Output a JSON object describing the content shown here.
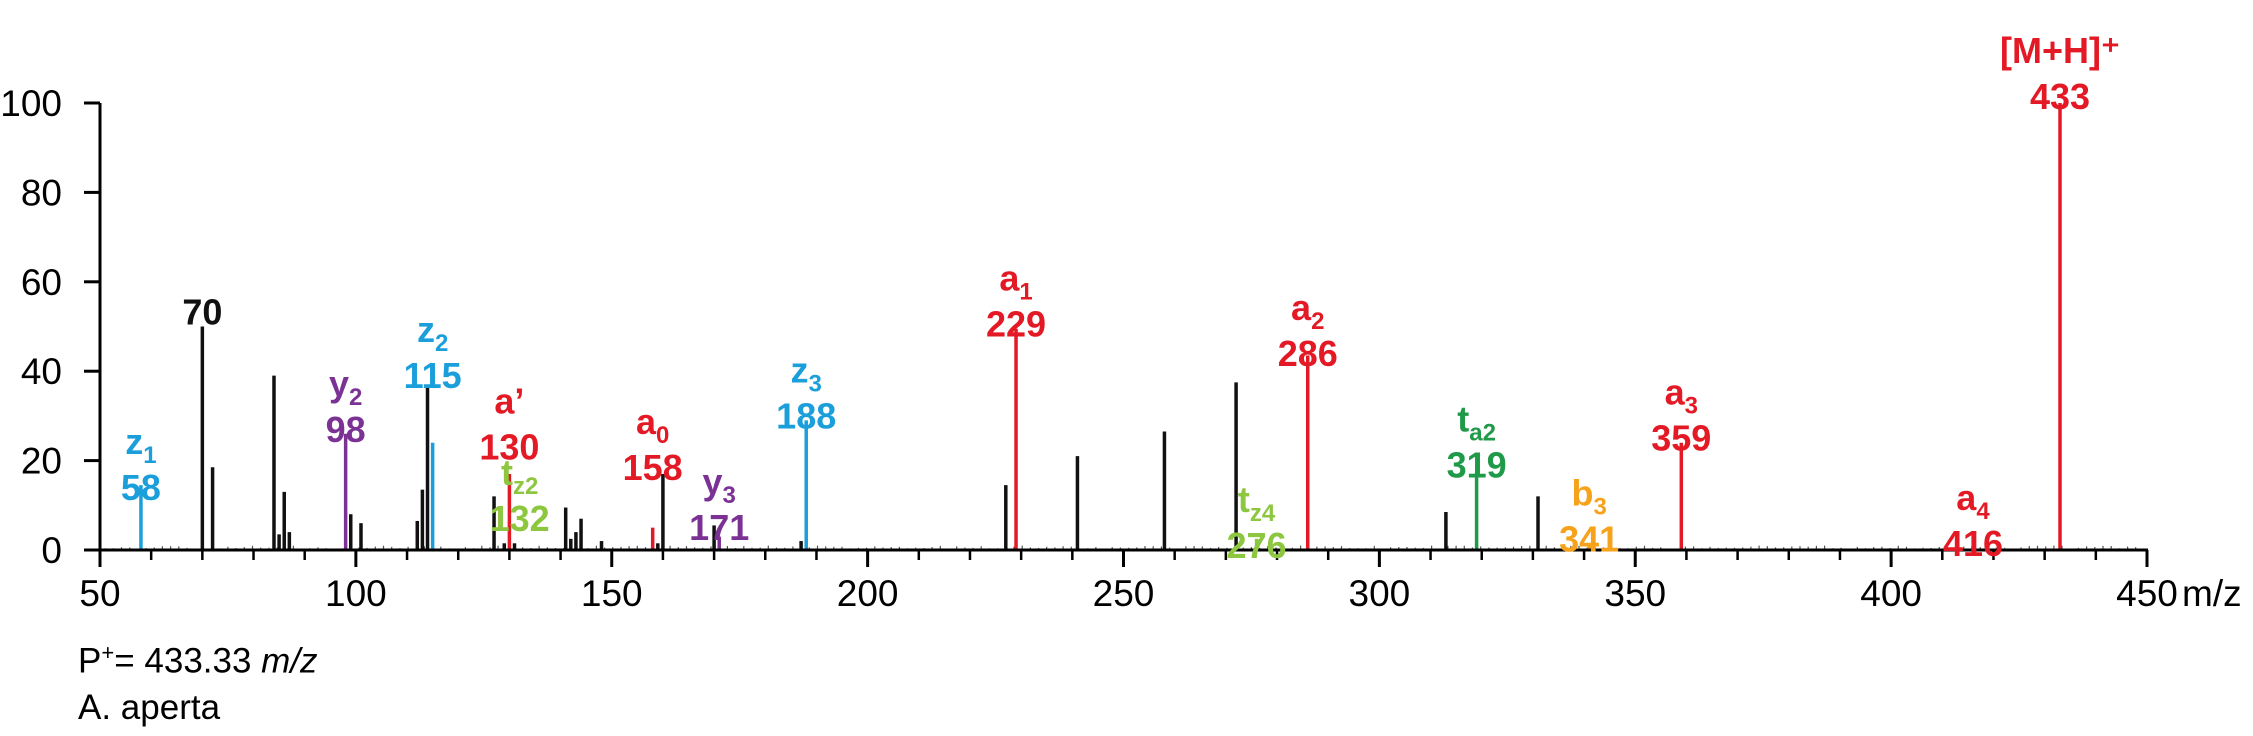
{
  "chart_data": {
    "type": "bar",
    "title": "",
    "xlabel": "m/z",
    "ylabel": "",
    "xlim": [
      50,
      450
    ],
    "ylim": [
      0,
      100
    ],
    "x_ticks": [
      50,
      100,
      150,
      200,
      250,
      300,
      350,
      400,
      450
    ],
    "y_ticks": [
      0,
      20,
      40,
      60,
      80,
      100
    ],
    "grid": false,
    "colors": {
      "unlabeled": "#111111",
      "a": "#e31a25",
      "z": "#1a9fdb",
      "y": "#7b3294",
      "tz": "#8dc63f",
      "ta": "#1f9a48",
      "b": "#f7a21b"
    },
    "peaks": [
      {
        "mz": 58,
        "intensity": 14.5,
        "label": "z",
        "sub": "1",
        "value": "58",
        "color": "#1a9fdb"
      },
      {
        "mz": 70,
        "intensity": 50,
        "label": "",
        "sub": "",
        "value": "70",
        "color": "#111111"
      },
      {
        "mz": 72,
        "intensity": 18.5,
        "color": "#111111"
      },
      {
        "mz": 84,
        "intensity": 39,
        "color": "#111111"
      },
      {
        "mz": 85,
        "intensity": 3.5,
        "color": "#111111"
      },
      {
        "mz": 86,
        "intensity": 13,
        "color": "#111111"
      },
      {
        "mz": 87,
        "intensity": 4,
        "color": "#111111"
      },
      {
        "mz": 98,
        "intensity": 26,
        "label": "y",
        "sub": "2",
        "value": "98",
        "color": "#7b3294"
      },
      {
        "mz": 99,
        "intensity": 8,
        "color": "#111111"
      },
      {
        "mz": 101,
        "intensity": 6,
        "color": "#111111"
      },
      {
        "mz": 112,
        "intensity": 6.5,
        "color": "#111111"
      },
      {
        "mz": 113,
        "intensity": 13.5,
        "color": "#111111"
      },
      {
        "mz": 114,
        "intensity": 37,
        "color": "#111111"
      },
      {
        "mz": 115,
        "intensity": 24,
        "label": "z",
        "sub": "2",
        "value": "115",
        "color": "#1a9fdb"
      },
      {
        "mz": 127,
        "intensity": 12,
        "color": "#111111"
      },
      {
        "mz": 129,
        "intensity": 1.5,
        "color": "#111111"
      },
      {
        "mz": 130,
        "intensity": 17,
        "label": "a’",
        "sub": "",
        "value": "130",
        "color": "#e31a25"
      },
      {
        "mz": 131,
        "intensity": 1.5,
        "color": "#111111"
      },
      {
        "mz": 141,
        "intensity": 9.5,
        "color": "#111111"
      },
      {
        "mz": 142,
        "intensity": 2.5,
        "color": "#111111"
      },
      {
        "mz": 143,
        "intensity": 4,
        "color": "#111111"
      },
      {
        "mz": 144,
        "intensity": 7,
        "color": "#111111"
      },
      {
        "mz": 148,
        "intensity": 2,
        "color": "#111111"
      },
      {
        "mz": 158,
        "intensity": 5,
        "color": "#e31a25"
      },
      {
        "mz": 159,
        "intensity": 1.5,
        "color": "#111111"
      },
      {
        "mz": 160,
        "intensity": 17,
        "color": "#111111"
      },
      {
        "mz": 170,
        "intensity": 5.5,
        "color": "#111111"
      },
      {
        "mz": 171,
        "intensity": 3,
        "color": "#7b3294"
      },
      {
        "mz": 187,
        "intensity": 2,
        "color": "#111111"
      },
      {
        "mz": 188,
        "intensity": 29,
        "label": "z",
        "sub": "3",
        "value": "188",
        "color": "#1a9fdb"
      },
      {
        "mz": 227,
        "intensity": 14.5,
        "color": "#111111"
      },
      {
        "mz": 229,
        "intensity": 49.5,
        "label": "a",
        "sub": "1",
        "value": "229",
        "color": "#e31a25"
      },
      {
        "mz": 241,
        "intensity": 21,
        "color": "#111111"
      },
      {
        "mz": 258,
        "intensity": 26.5,
        "color": "#111111"
      },
      {
        "mz": 272,
        "intensity": 37.5,
        "color": "#111111"
      },
      {
        "mz": 276,
        "intensity": 2.5,
        "color": "#8dc63f"
      },
      {
        "mz": 286,
        "intensity": 43.5,
        "label": "a",
        "sub": "2",
        "value": "286",
        "color": "#e31a25"
      },
      {
        "mz": 313,
        "intensity": 8.5,
        "color": "#111111"
      },
      {
        "mz": 319,
        "intensity": 17.5,
        "label": "t",
        "sub": "a2",
        "value": "319",
        "color": "#1f9a48"
      },
      {
        "mz": 331,
        "intensity": 12,
        "color": "#111111"
      },
      {
        "mz": 341,
        "intensity": 1.5,
        "color": "#f7a21b"
      },
      {
        "mz": 359,
        "intensity": 24,
        "label": "a",
        "sub": "3",
        "value": "359",
        "color": "#e31a25"
      },
      {
        "mz": 416,
        "intensity": 0.8,
        "color": "#e31a25"
      },
      {
        "mz": 433,
        "intensity": 100,
        "label": "[M+H]⁺",
        "sub": "",
        "value": "433",
        "color": "#e31a25"
      }
    ],
    "annotations": [
      {
        "mz": 58,
        "label": "z",
        "sub": "1",
        "value": "58",
        "color": "#1a9fdb",
        "top": 21.5
      },
      {
        "mz": 70,
        "label": "",
        "sub": "",
        "value": "70",
        "color": "#111111",
        "top": 50.5
      },
      {
        "mz": 98,
        "label": "y",
        "sub": "2",
        "value": "98",
        "color": "#7b3294",
        "top": 34.5
      },
      {
        "mz": 115,
        "label": "z",
        "sub": "2",
        "value": "115",
        "color": "#1a9fdb",
        "top": 46.5
      },
      {
        "mz": 130,
        "label": "a’",
        "sub": "",
        "value": "130",
        "color": "#e31a25",
        "top": 30.5
      },
      {
        "mz": 132,
        "label": "t",
        "sub": "z2",
        "value": "132",
        "color": "#8dc63f",
        "top": 14.5
      },
      {
        "mz": 158,
        "label": "a",
        "sub": "0",
        "value": "158",
        "color": "#e31a25",
        "top": 26
      },
      {
        "mz": 171,
        "label": "y",
        "sub": "3",
        "value": "171",
        "color": "#7b3294",
        "top": 12.5
      },
      {
        "mz": 188,
        "label": "z",
        "sub": "3",
        "value": "188",
        "color": "#1a9fdb",
        "top": 37.5
      },
      {
        "mz": 229,
        "label": "a",
        "sub": "1",
        "value": "229",
        "color": "#e31a25",
        "top": 58
      },
      {
        "mz": 276,
        "label": "t",
        "sub": "z4",
        "value": "276",
        "color": "#8dc63f",
        "top": 8.5
      },
      {
        "mz": 286,
        "label": "a",
        "sub": "2",
        "value": "286",
        "color": "#e31a25",
        "top": 51.5
      },
      {
        "mz": 319,
        "label": "t",
        "sub": "a2",
        "value": "319",
        "color": "#1f9a48",
        "top": 26.5
      },
      {
        "mz": 341,
        "label": "b",
        "sub": "3",
        "value": "341",
        "color": "#f7a21b",
        "top": 10
      },
      {
        "mz": 359,
        "label": "a",
        "sub": "3",
        "value": "359",
        "color": "#e31a25",
        "top": 32.5
      },
      {
        "mz": 416,
        "label": "a",
        "sub": "4",
        "value": "416",
        "color": "#e31a25",
        "top": 9
      },
      {
        "mz": 433,
        "label": "[M+H]⁺",
        "sub": "",
        "value": "433",
        "color": "#e31a25",
        "top": 109
      }
    ]
  },
  "captions": {
    "precursor_prefix": "P",
    "precursor_sup": "+",
    "precursor_value": "= 433.33 ",
    "precursor_unit": "m/z",
    "species": "A. aperta"
  }
}
